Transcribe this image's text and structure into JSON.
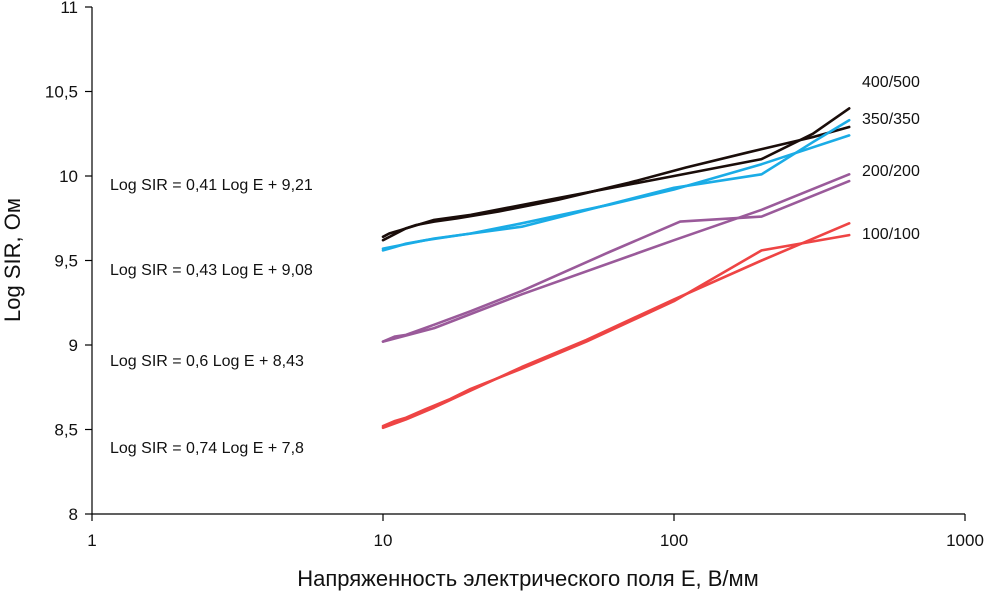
{
  "chart_data": {
    "type": "line",
    "xscale": "log",
    "xlim": [
      1,
      1000
    ],
    "ylim": [
      8,
      11
    ],
    "grid": false,
    "xlabel": "Напряженность электрического поля E, В/мм",
    "ylabel": "Log SIR, Ом",
    "xticks": [
      {
        "value": 1,
        "label": "1"
      },
      {
        "value": 10,
        "label": "10"
      },
      {
        "value": 100,
        "label": "100"
      },
      {
        "value": 1000,
        "label": "1000"
      }
    ],
    "yticks": [
      {
        "value": 8,
        "label": "8"
      },
      {
        "value": 8.5,
        "label": "8,5"
      },
      {
        "value": 9,
        "label": "9"
      },
      {
        "value": 9.5,
        "label": "9,5"
      },
      {
        "value": 10,
        "label": "10"
      },
      {
        "value": 10.5,
        "label": "10,5"
      },
      {
        "value": 11,
        "label": "11"
      }
    ],
    "series": [
      {
        "name": "400/500",
        "color": "#1a0d0a",
        "lines": [
          {
            "x": [
              10,
              10.5,
              11,
              11.5,
              12,
              13,
              15,
              18,
              25,
              40,
              70,
              110,
              180,
              300,
              400
            ],
            "y": [
              9.64,
              9.66,
              9.67,
              9.68,
              9.69,
              9.71,
              9.73,
              9.75,
              9.79,
              9.86,
              9.96,
              10.05,
              10.14,
              10.23,
              10.29
            ]
          },
          {
            "x": [
              10,
              12,
              15,
              20,
              40,
              100,
              200,
              300,
              400
            ],
            "y": [
              9.62,
              9.69,
              9.74,
              9.77,
              9.87,
              10.0,
              10.1,
              10.25,
              10.4
            ]
          }
        ]
      },
      {
        "name": "350/350",
        "color": "#1aace6",
        "lines": [
          {
            "x": [
              10,
              11,
              12,
              14,
              20,
              30,
              60,
              100,
              200,
              400
            ],
            "y": [
              9.56,
              9.58,
              9.6,
              9.62,
              9.66,
              9.72,
              9.83,
              9.92,
              10.07,
              10.24
            ]
          },
          {
            "x": [
              10,
              15,
              30,
              100,
              200,
              300,
              400
            ],
            "y": [
              9.57,
              9.63,
              9.7,
              9.93,
              10.01,
              10.2,
              10.33
            ]
          }
        ]
      },
      {
        "name": "200/200",
        "color": "#9a5a9a",
        "lines": [
          {
            "x": [
              10,
              11,
              12,
              15,
              20,
              30,
              60,
              105,
              200,
              400
            ],
            "y": [
              9.02,
              9.05,
              9.06,
              9.12,
              9.2,
              9.32,
              9.55,
              9.73,
              9.76,
              9.97
            ]
          },
          {
            "x": [
              10,
              15,
              30,
              100,
              200,
              400
            ],
            "y": [
              9.02,
              9.1,
              9.3,
              9.62,
              9.8,
              10.01
            ]
          }
        ]
      },
      {
        "name": "100/100",
        "color": "#ee4444",
        "lines": [
          {
            "x": [
              10,
              11,
              12,
              14,
              17,
              20,
              30,
              50,
              100,
              200,
              400
            ],
            "y": [
              8.52,
              8.55,
              8.57,
              8.62,
              8.68,
              8.74,
              8.86,
              9.02,
              9.26,
              9.56,
              9.65
            ]
          },
          {
            "x": [
              10,
              12,
              15,
              20,
              30,
              50,
              100,
              200,
              400
            ],
            "y": [
              8.51,
              8.56,
              8.63,
              8.73,
              8.87,
              9.03,
              9.27,
              9.5,
              9.72
            ]
          }
        ]
      }
    ],
    "annotations": [
      {
        "text": "Log SIR = 0,41 Log E + 9,21",
        "for": "400/500"
      },
      {
        "text": "Log SIR = 0,43 Log E + 9,08",
        "for": "350/350"
      },
      {
        "text": "Log SIR = 0,6 Log E + 8,43",
        "for": "200/200"
      },
      {
        "text": "Log SIR = 0,74 Log E + 7,8",
        "for": "100/100"
      }
    ]
  }
}
